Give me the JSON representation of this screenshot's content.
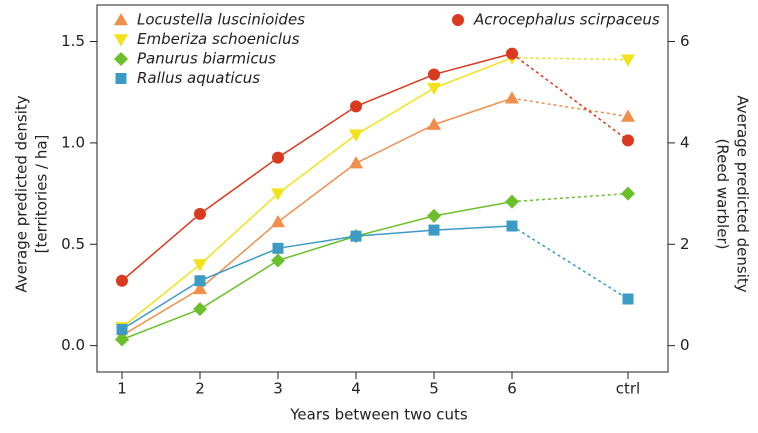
{
  "chart_data": {
    "type": "line",
    "xlabel": "Years between two cuts",
    "ylabel": [
      "Average predicted density",
      "[territories / ha]"
    ],
    "y2label": [
      "Average predicted density",
      "(Reed warbler)"
    ],
    "categories": [
      "1",
      "2",
      "3",
      "4",
      "5",
      "6",
      "ctrl"
    ],
    "ylim": [
      -0.13,
      1.68
    ],
    "yticks": [
      {
        "value": 0,
        "label": "0.0"
      },
      0.5,
      {
        "value": 1,
        "label": "1.0"
      },
      1.5
    ],
    "y2lim": [
      -0.52,
      6.72
    ],
    "y2ticks": [
      0,
      2,
      4,
      6
    ],
    "series": [
      {
        "name": "Locustella luscinioides",
        "color": "#f28e4c",
        "marker": "triangle-up",
        "values": [
          0.05,
          0.28,
          0.61,
          0.9,
          1.09,
          1.22,
          1.13
        ]
      },
      {
        "name": "Emberiza schoeniclus",
        "color": "#f2e21a",
        "marker": "triangle-down",
        "values": [
          0.09,
          0.4,
          0.75,
          1.04,
          1.27,
          1.42,
          1.41
        ]
      },
      {
        "name": "Panurus biarmicus",
        "color": "#6bbf2a",
        "marker": "diamond",
        "values": [
          0.03,
          0.18,
          0.42,
          0.54,
          0.64,
          0.71,
          0.75
        ]
      },
      {
        "name": "Rallus aquaticus",
        "color": "#3b9bc4",
        "marker": "square",
        "values": [
          0.08,
          0.32,
          0.48,
          0.54,
          0.57,
          0.59,
          0.23
        ]
      },
      {
        "name": "Acrocephalus scirpaceus",
        "color": "#d93a1f",
        "marker": "circle",
        "axis": "y2",
        "values": [
          1.28,
          2.6,
          3.71,
          4.72,
          5.35,
          5.76,
          4.05
        ]
      }
    ]
  }
}
